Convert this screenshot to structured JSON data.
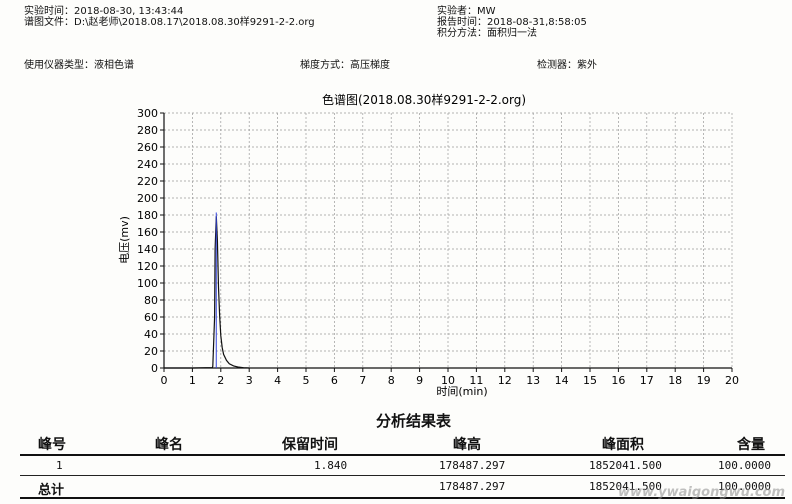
{
  "header": {
    "exp_time": "实验时间：2018-08-30, 13:43:44",
    "file": "谱图文件：D:\\赵老师\\2018.08.17\\2018.08.30样9291-2-2.org",
    "experimenter": "实验者：MW",
    "report_time": "报告时间：2018-08-31,8:58:05",
    "integration": "积分方法：面积归一法",
    "instrument": "使用仪器类型：液相色谱",
    "gradient": "梯度方式：高压梯度",
    "detector": "检测器：紫外"
  },
  "chart_data": {
    "type": "line",
    "title": "色谱图(2018.08.30样9291-2-2.org)",
    "xlabel": "时间(min)",
    "ylabel": "电压(mv)",
    "xlim": [
      0,
      20
    ],
    "ylim": [
      0,
      300
    ],
    "xticks": [
      "0",
      "1",
      "2",
      "3",
      "4",
      "5",
      "6",
      "7",
      "8",
      "9",
      "10",
      "11",
      "12",
      "13",
      "14",
      "15",
      "16",
      "17",
      "18",
      "19",
      "20"
    ],
    "yticks": [
      "0",
      "20",
      "40",
      "60",
      "80",
      "100",
      "120",
      "140",
      "160",
      "180",
      "200",
      "220",
      "240",
      "260",
      "280",
      "300"
    ],
    "grid": true,
    "series": [
      {
        "x": [
          0,
          1.0,
          1.7,
          1.72,
          1.78,
          1.8,
          1.84,
          1.88,
          1.92,
          1.96,
          2.0,
          2.05,
          2.1,
          2.2,
          2.3,
          2.45,
          2.6,
          2.8,
          3.0
        ],
        "y": [
          0,
          0,
          0.5,
          2,
          60,
          140,
          178.5,
          150,
          95,
          60,
          38,
          24,
          16,
          9,
          5,
          2.5,
          1.2,
          0.4,
          0
        ]
      }
    ],
    "peak_marker": {
      "x": 1.84,
      "y": 183
    },
    "color": "#111111",
    "marker_color": "#3344dd"
  },
  "results": {
    "title": "分析结果表",
    "columns": [
      "峰号",
      "峰名",
      "保留时间",
      "峰高",
      "峰面积",
      "含量"
    ],
    "rows": [
      {
        "no": "1",
        "name": "",
        "rt": "1.840",
        "height": "178487.297",
        "area": "1852041.500",
        "content": "100.0000"
      }
    ],
    "total": {
      "label": "总计",
      "height": "178487.297",
      "area": "1852041.500",
      "content": "100.0000"
    }
  },
  "watermark": "www.ywaigongwu.com"
}
